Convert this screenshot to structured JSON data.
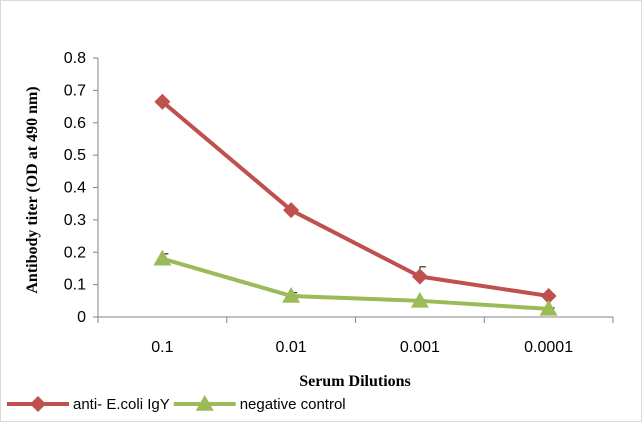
{
  "chart_data": {
    "type": "line",
    "title": "",
    "xlabel": "Serum Dilutions",
    "ylabel": "Antibody titer (OD at 490 nm)",
    "categories": [
      "0.1",
      "0.01",
      "0.001",
      "0.0001"
    ],
    "ylim": [
      0,
      0.8
    ],
    "yticks": [
      "0",
      "0.1",
      "0.2",
      "0.3",
      "0.4",
      "0.5",
      "0.6",
      "0.7",
      "0.8"
    ],
    "grid": false,
    "legend_position": "bottom",
    "series": [
      {
        "name": "anti- E.coli IgY",
        "values": [
          0.665,
          0.33,
          0.125,
          0.065
        ],
        "error": [
          0.005,
          0.005,
          0.03,
          0.005
        ],
        "color": "#c0504d",
        "marker": "diamond"
      },
      {
        "name": "negative control",
        "values": [
          0.18,
          0.065,
          0.05,
          0.025
        ],
        "error": [
          0.015,
          0.01,
          0.003,
          0.003
        ],
        "color": "#9bbb59",
        "marker": "triangle"
      }
    ]
  }
}
